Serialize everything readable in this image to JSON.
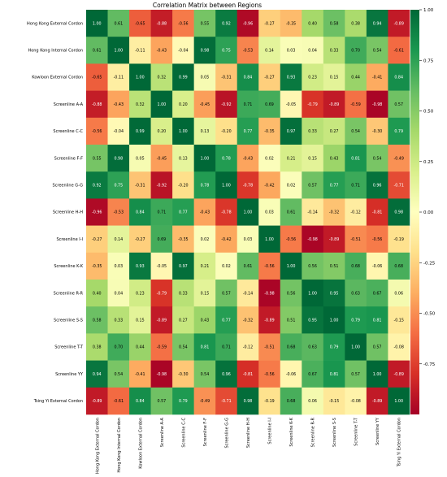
{
  "chart_data": {
    "type": "heatmap",
    "title": "Correlation Matrix between Regions",
    "labels": [
      "Hong Kong External Cordon",
      "Hong Kong Internal Cordon",
      "Kowloon External Cordon",
      "Screenline A-A",
      "Screenline C-C",
      "Screenline F-F",
      "Screenline G-G",
      "Screenline H-H",
      "Screenline I-I",
      "Screenline K-K",
      "Screenline R-R",
      "Screenline S-S",
      "Screenline T-T",
      "Screenline YY",
      "Tsing Yi External Cordon"
    ],
    "values": [
      [
        1.0,
        0.61,
        -0.65,
        -0.88,
        -0.56,
        0.55,
        0.92,
        -0.96,
        -0.27,
        -0.35,
        0.4,
        0.58,
        0.38,
        0.94,
        -0.89
      ],
      [
        0.61,
        1.0,
        -0.11,
        -0.43,
        -0.04,
        0.98,
        0.75,
        -0.53,
        0.14,
        0.03,
        0.04,
        0.33,
        0.7,
        0.54,
        -0.61
      ],
      [
        -0.65,
        -0.11,
        1.0,
        0.32,
        0.99,
        0.05,
        -0.31,
        0.84,
        -0.27,
        0.93,
        0.23,
        0.15,
        0.44,
        -0.41,
        0.84
      ],
      [
        -0.88,
        -0.43,
        0.32,
        1.0,
        0.2,
        -0.45,
        -0.92,
        0.71,
        0.69,
        -0.05,
        -0.79,
        -0.89,
        -0.59,
        -0.98,
        0.57
      ],
      [
        -0.56,
        -0.04,
        0.99,
        0.2,
        1.0,
        0.13,
        -0.2,
        0.77,
        -0.35,
        0.97,
        0.33,
        0.27,
        0.54,
        -0.3,
        0.79
      ],
      [
        0.55,
        0.98,
        0.05,
        -0.45,
        0.13,
        1.0,
        0.78,
        -0.43,
        0.02,
        0.21,
        0.15,
        0.43,
        0.81,
        0.54,
        -0.49
      ],
      [
        0.92,
        0.75,
        -0.31,
        -0.92,
        -0.2,
        0.78,
        1.0,
        -0.78,
        -0.42,
        0.02,
        0.57,
        0.77,
        0.71,
        0.96,
        -0.71
      ],
      [
        -0.96,
        -0.53,
        0.84,
        0.71,
        0.77,
        -0.43,
        -0.78,
        1.0,
        0.03,
        0.61,
        -0.14,
        -0.32,
        -0.12,
        -0.81,
        0.98
      ],
      [
        -0.27,
        0.14,
        -0.27,
        0.69,
        -0.35,
        0.02,
        -0.42,
        0.03,
        1.0,
        -0.56,
        -0.98,
        -0.89,
        -0.51,
        -0.56,
        -0.19
      ],
      [
        -0.35,
        0.03,
        0.93,
        -0.05,
        0.97,
        0.21,
        0.02,
        0.61,
        -0.56,
        1.0,
        0.56,
        0.51,
        0.68,
        -0.06,
        0.68
      ],
      [
        0.4,
        0.04,
        0.23,
        -0.79,
        0.33,
        0.15,
        0.57,
        -0.14,
        -0.98,
        0.56,
        1.0,
        0.95,
        0.63,
        0.67,
        0.06
      ],
      [
        0.58,
        0.33,
        0.15,
        -0.89,
        0.27,
        0.43,
        0.77,
        -0.32,
        -0.89,
        0.51,
        0.95,
        1.0,
        0.79,
        0.81,
        -0.15
      ],
      [
        0.38,
        0.7,
        0.44,
        -0.59,
        0.54,
        0.81,
        0.71,
        -0.12,
        -0.51,
        0.68,
        0.63,
        0.79,
        1.0,
        0.57,
        -0.08
      ],
      [
        0.94,
        0.54,
        -0.41,
        -0.98,
        -0.3,
        0.54,
        0.96,
        -0.81,
        -0.56,
        -0.06,
        0.67,
        0.81,
        0.57,
        1.0,
        -0.89
      ],
      [
        -0.89,
        -0.61,
        0.84,
        0.57,
        0.79,
        -0.49,
        -0.71,
        0.98,
        -0.19,
        0.68,
        0.06,
        -0.15,
        -0.08,
        -0.89,
        1.0
      ]
    ],
    "colormap": "RdYlGn",
    "vmin": -1.0,
    "vmax": 1.0,
    "colorbar_ticks": [
      "1.00",
      "0.75",
      "0.50",
      "0.25",
      "0.00",
      "-0.25",
      "-0.50",
      "-0.75"
    ],
    "colorbar_tick_values": [
      1.0,
      0.75,
      0.5,
      0.25,
      0.0,
      -0.25,
      -0.5,
      -0.75
    ],
    "legend": "colorbar-right"
  }
}
